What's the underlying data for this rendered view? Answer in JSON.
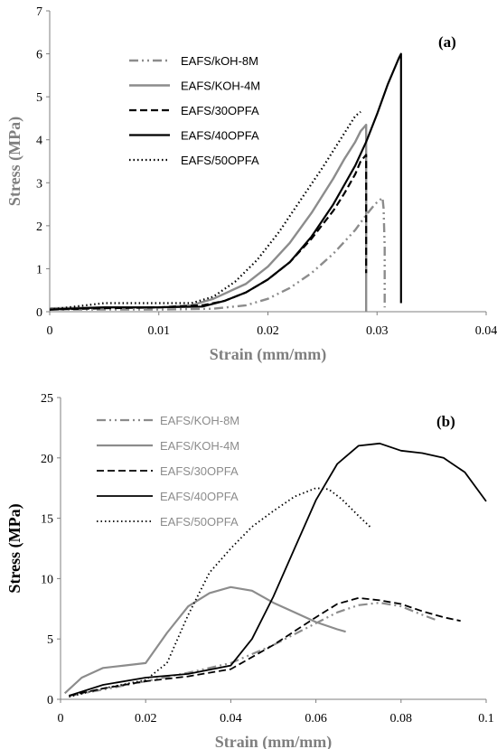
{
  "chart_data": [
    {
      "type": "line",
      "panel_label": "(a)",
      "xlabel": "Strain (mm/mm)",
      "ylabel": "Stress (MPa)",
      "xlim": [
        0,
        0.04
      ],
      "ylim": [
        0,
        7
      ],
      "xticks": [
        "0",
        "0.01",
        "0.02",
        "0.03",
        "0.04"
      ],
      "yticks": [
        "0",
        "1",
        "2",
        "3",
        "4",
        "5",
        "6",
        "7"
      ],
      "grid": false,
      "legend_position": "top-left",
      "series": [
        {
          "name": "EAFS/kOH-8M",
          "color": "#8c8c8c",
          "dash": "dashdotdot",
          "x": [
            0,
            0.005,
            0.01,
            0.015,
            0.018,
            0.02,
            0.022,
            0.024,
            0.026,
            0.028,
            0.029,
            0.0298,
            0.0305,
            0.0306,
            0.0307,
            0.0307
          ],
          "y": [
            0.05,
            0.05,
            0.05,
            0.07,
            0.15,
            0.3,
            0.55,
            0.9,
            1.35,
            1.9,
            2.25,
            2.5,
            2.65,
            2.4,
            1.5,
            0.1
          ]
        },
        {
          "name": "EAFS/KOH-4M",
          "color": "#8c8c8c",
          "dash": "solid",
          "x": [
            0,
            0.005,
            0.01,
            0.013,
            0.015,
            0.018,
            0.02,
            0.022,
            0.024,
            0.026,
            0.027,
            0.028,
            0.0285,
            0.029,
            0.029
          ],
          "y": [
            0.08,
            0.1,
            0.1,
            0.15,
            0.3,
            0.65,
            1.05,
            1.6,
            2.3,
            3.1,
            3.55,
            3.95,
            4.2,
            4.35,
            0
          ]
        },
        {
          "name": "EAFS/30OPFA",
          "color": "#000000",
          "dash": "dashed",
          "x": [
            0,
            0.005,
            0.01,
            0.014,
            0.016,
            0.018,
            0.02,
            0.022,
            0.024,
            0.026,
            0.027,
            0.028,
            0.0285,
            0.029,
            0.029
          ],
          "y": [
            0.05,
            0.08,
            0.1,
            0.15,
            0.25,
            0.45,
            0.75,
            1.15,
            1.7,
            2.35,
            2.75,
            3.2,
            3.5,
            3.65,
            0.9
          ]
        },
        {
          "name": "EAFS/40OPFA",
          "color": "#000000",
          "dash": "solid",
          "x": [
            0,
            0.005,
            0.01,
            0.014,
            0.016,
            0.018,
            0.02,
            0.022,
            0.024,
            0.026,
            0.028,
            0.029,
            0.03,
            0.031,
            0.032,
            0.0322,
            0.0322
          ],
          "y": [
            0.05,
            0.1,
            0.1,
            0.12,
            0.25,
            0.45,
            0.75,
            1.15,
            1.75,
            2.5,
            3.4,
            3.95,
            4.6,
            5.3,
            5.9,
            6.0,
            0.2
          ]
        },
        {
          "name": "EAFS/50OPFA",
          "color": "#000000",
          "dash": "dotted",
          "x": [
            0,
            0.005,
            0.01,
            0.013,
            0.015,
            0.017,
            0.019,
            0.021,
            0.023,
            0.025,
            0.027,
            0.028,
            0.0285
          ],
          "y": [
            0.05,
            0.2,
            0.2,
            0.2,
            0.35,
            0.7,
            1.2,
            1.85,
            2.6,
            3.35,
            4.15,
            4.55,
            4.65
          ]
        }
      ]
    },
    {
      "type": "line",
      "panel_label": "(b)",
      "xlabel": "Strain (mm/mm)",
      "ylabel": "Stress (MPa)",
      "xlim": [
        0,
        0.1
      ],
      "ylim": [
        0,
        25
      ],
      "xticks": [
        "0",
        "0.02",
        "0.04",
        "0.06",
        "0.08",
        "0.1"
      ],
      "yticks": [
        "0",
        "5",
        "10",
        "15",
        "20",
        "25"
      ],
      "grid": false,
      "legend_position": "top-left",
      "series": [
        {
          "name": "EAFS/KOH-8M",
          "color": "#8c8c8c",
          "dash": "dashdotdot",
          "x": [
            0.002,
            0.01,
            0.02,
            0.03,
            0.04,
            0.05,
            0.06,
            0.065,
            0.07,
            0.075,
            0.08,
            0.085,
            0.088
          ],
          "y": [
            0.3,
            0.8,
            1.5,
            2.2,
            3.0,
            4.5,
            6.3,
            7.2,
            7.8,
            8.0,
            7.7,
            7.0,
            6.6
          ]
        },
        {
          "name": "EAFS/KOH-4M",
          "color": "#8c8c8c",
          "dash": "solid",
          "x": [
            0.001,
            0.005,
            0.01,
            0.015,
            0.02,
            0.025,
            0.03,
            0.035,
            0.04,
            0.045,
            0.05,
            0.055,
            0.06,
            0.065,
            0.067
          ],
          "y": [
            0.5,
            1.8,
            2.6,
            2.8,
            3.0,
            5.5,
            7.7,
            8.8,
            9.3,
            9.0,
            8.0,
            7.2,
            6.4,
            5.8,
            5.6
          ]
        },
        {
          "name": "EAFS/30OPFA",
          "color": "#000000",
          "dash": "dashed",
          "x": [
            0.002,
            0.01,
            0.02,
            0.03,
            0.04,
            0.05,
            0.06,
            0.065,
            0.07,
            0.075,
            0.08,
            0.085,
            0.09,
            0.094
          ],
          "y": [
            0.3,
            0.9,
            1.5,
            1.9,
            2.5,
            4.5,
            6.8,
            7.9,
            8.4,
            8.2,
            7.9,
            7.3,
            6.8,
            6.5
          ]
        },
        {
          "name": "EAFS/40OPFA",
          "color": "#000000",
          "dash": "solid",
          "x": [
            0.002,
            0.01,
            0.02,
            0.03,
            0.04,
            0.045,
            0.05,
            0.055,
            0.06,
            0.065,
            0.07,
            0.075,
            0.08,
            0.085,
            0.09,
            0.095,
            0.1
          ],
          "y": [
            0.3,
            1.2,
            1.8,
            2.1,
            2.8,
            5.0,
            8.5,
            12.5,
            16.5,
            19.5,
            21.0,
            21.2,
            20.6,
            20.4,
            20.0,
            18.8,
            16.4
          ]
        },
        {
          "name": "EAFS/50OPFA",
          "color": "#000000",
          "dash": "dotted",
          "x": [
            0.002,
            0.01,
            0.02,
            0.025,
            0.03,
            0.035,
            0.04,
            0.045,
            0.05,
            0.055,
            0.06,
            0.063,
            0.066,
            0.07,
            0.073
          ],
          "y": [
            0.2,
            0.9,
            1.6,
            3.0,
            7.0,
            10.5,
            12.5,
            14.3,
            15.6,
            16.8,
            17.5,
            17.4,
            16.6,
            15.2,
            14.2
          ]
        }
      ]
    }
  ]
}
